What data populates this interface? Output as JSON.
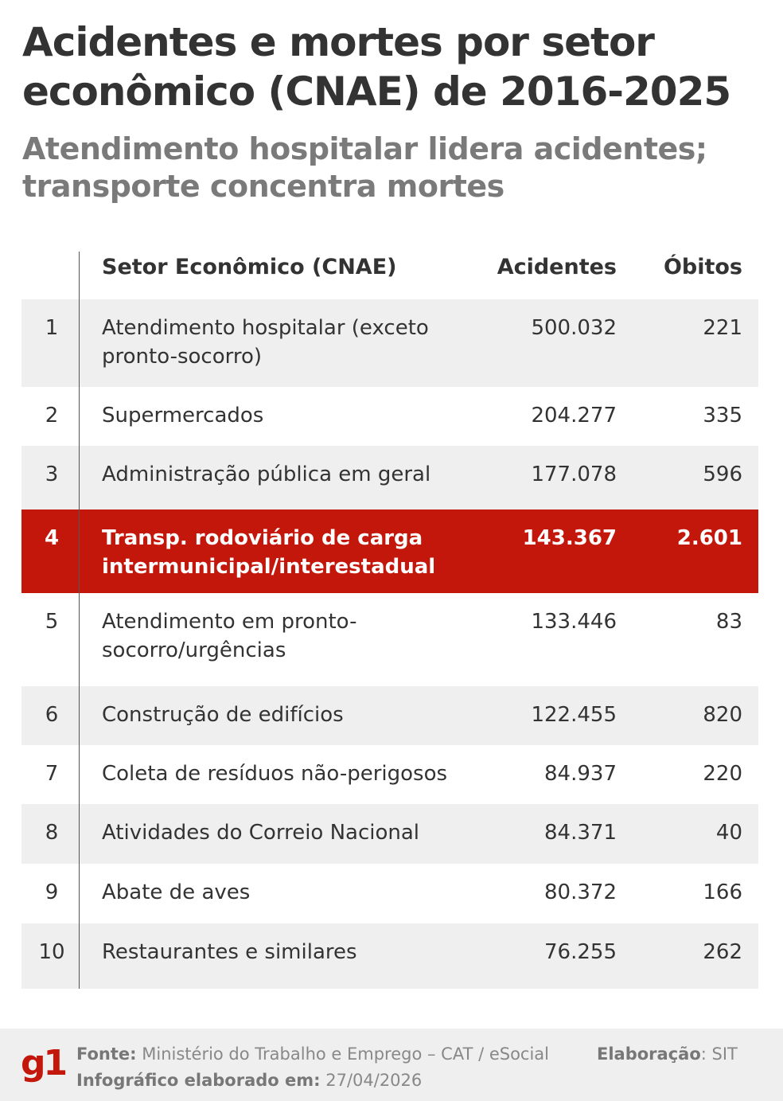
{
  "title": "Acidentes e mortes por setor econômico (CNAE) de 2016-2025",
  "subtitle": "Atendimento hospitalar lidera acidentes; transporte concentra mortes",
  "chart_data": {
    "type": "table",
    "columns": [
      "",
      "Setor Econômico (CNAE)",
      "Acidentes",
      "Óbitos"
    ],
    "rows": [
      {
        "rank": "1",
        "sector": "Atendimento hospitalar (exceto pronto-socorro)",
        "accidents": "500.032",
        "deaths": "221"
      },
      {
        "rank": "2",
        "sector": "Supermercados",
        "accidents": "204.277",
        "deaths": "335"
      },
      {
        "rank": "3",
        "sector": "Administração pública em geral",
        "accidents": "177.078",
        "deaths": "596"
      },
      {
        "rank": "4",
        "sector": "Transp. rodoviário de carga intermunicipal/interestadual",
        "accidents": "143.367",
        "deaths": "2.601",
        "highlighted": true
      },
      {
        "rank": "5",
        "sector": "Atendimento em pronto-socorro/urgências",
        "accidents": "133.446",
        "deaths": "83"
      },
      {
        "rank": "6",
        "sector": "Construção de edifícios",
        "accidents": "122.455",
        "deaths": "820"
      },
      {
        "rank": "7",
        "sector": "Coleta de resíduos não-perigosos",
        "accidents": "84.937",
        "deaths": "220"
      },
      {
        "rank": "8",
        "sector": "Atividades do Correio Nacional",
        "accidents": "84.371",
        "deaths": "40"
      },
      {
        "rank": "9",
        "sector": "Abate de aves",
        "accidents": "80.372",
        "deaths": "166"
      },
      {
        "rank": "10",
        "sector": "Restaurantes e similares",
        "accidents": "76.255",
        "deaths": "262"
      }
    ],
    "highlight_color": "#c4170c",
    "stripe_color": "#efefef"
  },
  "footer": {
    "logo": "g1",
    "source_label": "Fonte:",
    "source": "Ministério do Trabalho e Emprego – CAT / eSocial",
    "date_label": "Infográfico elaborado em:",
    "date": "27/04/2026",
    "credit_label": "Elaboração",
    "credit": "SIT"
  }
}
